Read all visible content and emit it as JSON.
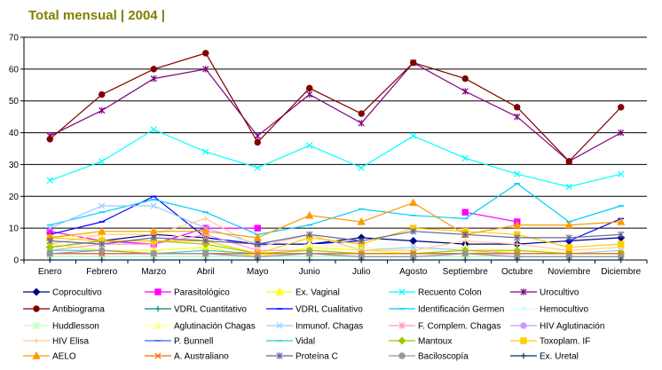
{
  "chart_data": {
    "type": "line",
    "title": "Total mensual | 2004 |",
    "xlabel": "",
    "ylabel": "",
    "ylim": [
      0,
      70
    ],
    "y_ticks": [
      0,
      10,
      20,
      30,
      40,
      50,
      60,
      70
    ],
    "grid": true,
    "legend_position": "bottom",
    "categories": [
      "Enero",
      "Febrero",
      "Marzo",
      "Abril",
      "Mayo",
      "Junio",
      "Julio",
      "Agosto",
      "Septiembre",
      "Octubre",
      "Noviembre",
      "Diciembre"
    ],
    "series": [
      {
        "name": "Coprocultivo",
        "color": "#000080",
        "marker": "diamond",
        "values": [
          4,
          6,
          8,
          7,
          5,
          5,
          7,
          6,
          5,
          5,
          6,
          7
        ]
      },
      {
        "name": "Parasitológico",
        "color": "#FF00FF",
        "marker": "square",
        "values": [
          9,
          6,
          5,
          10,
          10,
          null,
          null,
          null,
          15,
          12,
          null,
          null
        ]
      },
      {
        "name": "Ex. Vaginal",
        "color": "#FFFF00",
        "marker": "triangle",
        "values": [
          5,
          3,
          3,
          4,
          1,
          4,
          3,
          2,
          2,
          3,
          2,
          3
        ]
      },
      {
        "name": "Recuento Colon",
        "color": "#00FFFF",
        "marker": "x",
        "values": [
          25,
          31,
          41,
          34,
          29,
          36,
          29,
          39,
          32,
          27,
          23,
          27
        ]
      },
      {
        "name": "Urocultivo",
        "color": "#800080",
        "marker": "star",
        "values": [
          39,
          47,
          57,
          60,
          39,
          52,
          43,
          62,
          53,
          45,
          31,
          40
        ]
      },
      {
        "name": "Antibiograma",
        "color": "#800000",
        "marker": "circle",
        "values": [
          38,
          52,
          60,
          65,
          37,
          54,
          46,
          62,
          57,
          48,
          31,
          48
        ]
      },
      {
        "name": "VDRL Cuantitativo",
        "color": "#008080",
        "marker": "plus",
        "values": [
          1,
          1,
          1,
          1,
          1,
          1,
          1,
          1,
          1,
          1,
          1,
          1
        ]
      },
      {
        "name": "VDRL Cualitativo",
        "color": "#0000FF",
        "marker": "dash",
        "values": [
          8,
          12,
          20,
          7,
          5,
          5,
          6,
          null,
          null,
          null,
          6,
          13
        ]
      },
      {
        "name": "Identificación Germen",
        "color": "#00CCFF",
        "marker": "dash",
        "values": [
          11,
          15,
          19,
          15,
          8,
          11,
          16,
          14,
          13,
          24,
          12,
          17
        ]
      },
      {
        "name": "Hemocultivo",
        "color": "#CCFFFF",
        "marker": "x",
        "values": [
          2,
          2,
          2,
          2,
          2,
          2,
          2,
          2,
          2,
          2,
          2,
          2
        ]
      },
      {
        "name": "Huddlesson",
        "color": "#CCFFCC",
        "marker": "square",
        "values": [
          1,
          1,
          1,
          1,
          1,
          1,
          1,
          1,
          1,
          1,
          1,
          1
        ]
      },
      {
        "name": "Aglutinación Chagas",
        "color": "#FFFF99",
        "marker": "triangle",
        "values": [
          7,
          8,
          9,
          6,
          2,
          5,
          4,
          3,
          4,
          3,
          3,
          4
        ]
      },
      {
        "name": "Inmunof. Chagas",
        "color": "#99CCFF",
        "marker": "x",
        "values": [
          10,
          17,
          17,
          10,
          5,
          8,
          3,
          4,
          3,
          2,
          2,
          3
        ]
      },
      {
        "name": "F. Complem. Chagas",
        "color": "#FF99CC",
        "marker": "star",
        "values": [
          3,
          5,
          5,
          8,
          3,
          3,
          2,
          2,
          3,
          2,
          2,
          2
        ]
      },
      {
        "name": "HIV Aglutinación",
        "color": "#CC99FF",
        "marker": "circle",
        "values": [
          2,
          2,
          2,
          2,
          2,
          2,
          2,
          2,
          2,
          2,
          2,
          2
        ]
      },
      {
        "name": "HIV Elisa",
        "color": "#FFCC99",
        "marker": "plus",
        "values": [
          5,
          8,
          8,
          13,
          4,
          8,
          3,
          3,
          6,
          5,
          3,
          4
        ]
      },
      {
        "name": "P. Bunnell",
        "color": "#3366FF",
        "marker": "dash",
        "values": [
          2,
          2,
          2,
          2,
          2,
          2,
          2,
          2,
          2,
          2,
          2,
          2
        ]
      },
      {
        "name": "Vidal",
        "color": "#33CCCC",
        "marker": "dash",
        "values": [
          3,
          3,
          2,
          3,
          2,
          2,
          2,
          2,
          2,
          2,
          2,
          2
        ]
      },
      {
        "name": "Mantoux",
        "color": "#99CC00",
        "marker": "diamond",
        "values": [
          4,
          6,
          6,
          5,
          2,
          3,
          2,
          2,
          3,
          3,
          2,
          2
        ]
      },
      {
        "name": "Toxoplam. IF",
        "color": "#FFCC00",
        "marker": "square",
        "values": [
          7,
          6,
          6,
          6,
          2,
          7,
          5,
          10,
          9,
          8,
          4,
          5
        ]
      },
      {
        "name": "AELO",
        "color": "#FF9900",
        "marker": "triangle",
        "values": [
          7,
          9,
          9,
          9,
          7,
          14,
          12,
          18,
          8,
          11,
          11,
          12
        ]
      },
      {
        "name": "A. Australiano",
        "color": "#FF6600",
        "marker": "x",
        "values": [
          2,
          2,
          2,
          2,
          2,
          2,
          2,
          2,
          2,
          2,
          2,
          2
        ]
      },
      {
        "name": "Proteína C",
        "color": "#666699",
        "marker": "star",
        "values": [
          6,
          5,
          7,
          6,
          5,
          8,
          6,
          9,
          8,
          7,
          7,
          8
        ]
      },
      {
        "name": "Baciloscopía",
        "color": "#969696",
        "marker": "circle",
        "values": [
          2,
          3,
          2,
          2,
          1,
          2,
          1,
          1,
          2,
          1,
          1,
          1
        ]
      },
      {
        "name": "Ex. Uretal",
        "color": "#003366",
        "marker": "plus",
        "values": [
          0,
          0,
          0,
          0,
          0,
          0,
          0,
          0,
          0,
          0,
          0,
          0
        ]
      }
    ]
  }
}
